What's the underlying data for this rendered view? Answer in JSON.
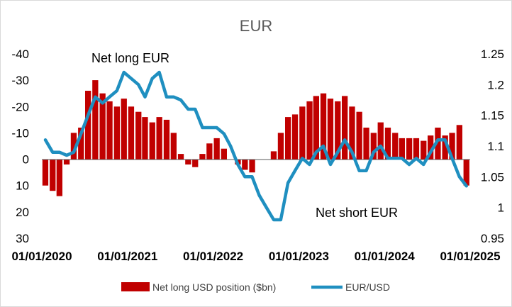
{
  "chart_data": {
    "type": "bar+line",
    "title": "EUR",
    "annotations": [
      "Net long EUR",
      "Net short EUR"
    ],
    "x_ticks": [
      "01/01/2020",
      "01/01/2021",
      "01/01/2022",
      "01/01/2023",
      "01/01/2024",
      "01/01/2025"
    ],
    "y_left": {
      "range": [
        -40,
        30
      ],
      "inverted": true,
      "ticks": [
        "-40",
        "-30",
        "-20",
        "-10",
        "0",
        "10",
        "20",
        "30"
      ]
    },
    "y_right": {
      "range": [
        0.95,
        1.25
      ],
      "ticks": [
        "1.25",
        "1.2",
        "1.15",
        "1.1",
        "1.05",
        "1",
        "0.95"
      ]
    },
    "colors": {
      "bars": "#c00000",
      "line": "#1f8fc0"
    },
    "series": [
      {
        "name": "Net long USD position ($bn)",
        "kind": "bar",
        "axis": "left",
        "x": [
          "2020-01",
          "2020-02",
          "2020-03",
          "2020-04",
          "2020-05",
          "2020-06",
          "2020-07",
          "2020-08",
          "2020-09",
          "2020-10",
          "2020-11",
          "2020-12",
          "2021-01",
          "2021-02",
          "2021-03",
          "2021-04",
          "2021-05",
          "2021-06",
          "2021-07",
          "2021-08",
          "2021-09",
          "2021-10",
          "2021-11",
          "2021-12",
          "2022-01",
          "2022-02",
          "2022-03",
          "2022-04",
          "2022-05",
          "2022-06",
          "2022-07",
          "2022-08",
          "2022-09",
          "2022-10",
          "2022-11",
          "2022-12",
          "2023-01",
          "2023-02",
          "2023-03",
          "2023-04",
          "2023-05",
          "2023-06",
          "2023-07",
          "2023-08",
          "2023-09",
          "2023-10",
          "2023-11",
          "2023-12",
          "2024-01",
          "2024-02",
          "2024-03",
          "2024-04",
          "2024-05",
          "2024-06",
          "2024-07",
          "2024-08",
          "2024-09",
          "2024-10",
          "2024-11",
          "2024-12"
        ],
        "values": [
          10,
          12,
          14,
          2,
          -10,
          -12,
          -26,
          -30,
          -25,
          -22,
          -20,
          -23,
          -20,
          -18,
          -16,
          -14,
          -16,
          -15,
          -10,
          -2,
          2,
          3,
          -2,
          -6,
          -8,
          -4,
          0,
          2,
          4,
          5,
          0,
          0,
          -3,
          -10,
          -16,
          -17,
          -20,
          -22,
          -24,
          -25,
          -23,
          -22,
          -24,
          -20,
          -18,
          -12,
          -10,
          -14,
          -12,
          -10,
          -8,
          -8,
          -8,
          -7,
          -9,
          -12,
          -9,
          -10,
          -13,
          10
        ]
      },
      {
        "name": "EUR/USD",
        "kind": "line",
        "axis": "right",
        "x": [
          "2020-01",
          "2020-02",
          "2020-03",
          "2020-04",
          "2020-05",
          "2020-06",
          "2020-07",
          "2020-08",
          "2020-09",
          "2020-10",
          "2020-11",
          "2020-12",
          "2021-01",
          "2021-02",
          "2021-03",
          "2021-04",
          "2021-05",
          "2021-06",
          "2021-07",
          "2021-08",
          "2021-09",
          "2021-10",
          "2021-11",
          "2021-12",
          "2022-01",
          "2022-02",
          "2022-03",
          "2022-04",
          "2022-05",
          "2022-06",
          "2022-07",
          "2022-08",
          "2022-09",
          "2022-10",
          "2022-11",
          "2022-12",
          "2023-01",
          "2023-02",
          "2023-03",
          "2023-04",
          "2023-05",
          "2023-06",
          "2023-07",
          "2023-08",
          "2023-09",
          "2023-10",
          "2023-11",
          "2023-12",
          "2024-01",
          "2024-02",
          "2024-03",
          "2024-04",
          "2024-05",
          "2024-06",
          "2024-07",
          "2024-08",
          "2024-09",
          "2024-10",
          "2024-11",
          "2024-12"
        ],
        "values": [
          1.11,
          1.09,
          1.09,
          1.085,
          1.09,
          1.12,
          1.15,
          1.18,
          1.17,
          1.18,
          1.19,
          1.22,
          1.21,
          1.2,
          1.18,
          1.21,
          1.22,
          1.18,
          1.18,
          1.175,
          1.16,
          1.16,
          1.13,
          1.13,
          1.13,
          1.12,
          1.1,
          1.07,
          1.05,
          1.05,
          1.02,
          1.0,
          0.98,
          0.98,
          1.04,
          1.06,
          1.08,
          1.07,
          1.09,
          1.1,
          1.07,
          1.09,
          1.11,
          1.09,
          1.06,
          1.06,
          1.09,
          1.1,
          1.08,
          1.08,
          1.08,
          1.07,
          1.08,
          1.07,
          1.09,
          1.11,
          1.11,
          1.08,
          1.05,
          1.035
        ]
      }
    ]
  }
}
